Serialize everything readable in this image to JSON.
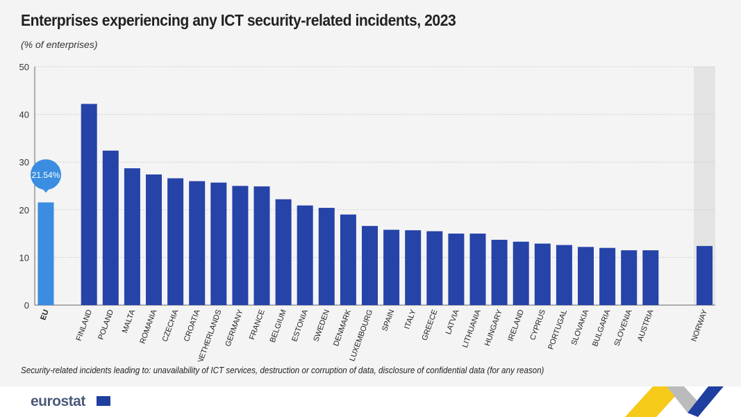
{
  "title": "Enterprises experiencing any ICT security-related incidents, 2023",
  "subtitle": "(% of enterprises)",
  "note": "Security-related incidents leading to: unavailability of ICT services, destruction or corruption of data, disclosure of confidential data (for any reason)",
  "logo": "eurostat",
  "colors": {
    "eu": "#3a8de0",
    "country": "#2643a8",
    "highlight_band": "#e4e4e4"
  },
  "chart_data": {
    "type": "bar",
    "ylim": [
      0,
      50
    ],
    "yticks": [
      0,
      10,
      20,
      30,
      40,
      50
    ],
    "grid": true,
    "eu_callout": "21.54%",
    "categories": [
      "EU",
      "FINLAND",
      "POLAND",
      "MALTA",
      "ROMANIA",
      "CZECHIA",
      "CROATIA",
      "NETHERLANDS",
      "GERMANY",
      "FRANCE",
      "BELGIUM",
      "ESTONIA",
      "SWEDEN",
      "DENMARK",
      "LUXEMBOURG",
      "SPAIN",
      "ITALY",
      "GREECE",
      "LATVIA",
      "LITHUANIA",
      "HUNGARY",
      "IRELAND",
      "CYPRUS",
      "PORTUGAL",
      "SLOVAKIA",
      "BULGARIA",
      "SLOVENIA",
      "AUSTRIA",
      "NORWAY"
    ],
    "values": [
      21.54,
      42.2,
      32.4,
      28.7,
      27.4,
      26.6,
      26.0,
      25.7,
      25.0,
      24.9,
      22.2,
      20.9,
      20.4,
      19.0,
      16.6,
      15.8,
      15.7,
      15.5,
      15.0,
      15.0,
      13.7,
      13.3,
      12.9,
      12.6,
      12.2,
      12.0,
      11.5,
      11.5,
      12.4
    ]
  }
}
